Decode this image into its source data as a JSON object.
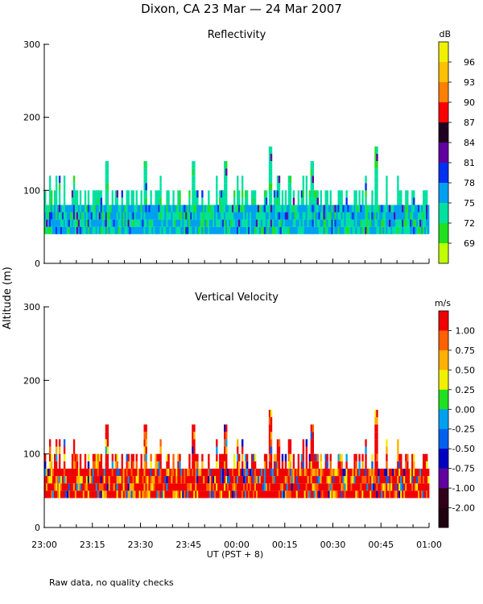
{
  "chart_data": {
    "title": "Dixon, CA 23 Mar — 24 Mar 2007",
    "ylabel": "Altitude (m)",
    "xlabel": "UT  (PST + 8)",
    "footnote": "Raw data, no quality checks",
    "x_ticks": [
      "23:00",
      "23:15",
      "23:30",
      "23:45",
      "00:00",
      "00:15",
      "00:30",
      "00:45",
      "01:00"
    ],
    "x_range_minutes": [
      0,
      120
    ],
    "panels": [
      {
        "type": "heatmap",
        "title": "Reflectivity",
        "y_ticks": [
          "300",
          "200",
          "100",
          "0"
        ],
        "y_tick_values": [
          300,
          200,
          100,
          0
        ],
        "ylim": [
          0,
          300
        ],
        "data_altitude_range_m": [
          40,
          80
        ],
        "max_echo_top_m": 160,
        "colorbar_unit": "dB",
        "colorbar_labels": [
          "96",
          "93",
          "90",
          "87",
          "84",
          "81",
          "78",
          "75",
          "72",
          "69"
        ],
        "colorbar_colors": [
          "#f0f000",
          "#ffc000",
          "#ff8000",
          "#ff0000",
          "#200020",
          "#6000a0",
          "#0030f0",
          "#00a0f0",
          "#00e0a0",
          "#20e020",
          "#c0ff00"
        ],
        "dominant_values_dB": [
          75,
          78,
          72
        ],
        "spike_times_min": [
          19,
          31,
          46,
          56,
          70,
          76,
          83,
          103
        ],
        "spike_tops_m": [
          140,
          140,
          140,
          140,
          160,
          120,
          140,
          160
        ]
      },
      {
        "type": "heatmap",
        "title": "Vertical Velocity",
        "y_ticks": [
          "300",
          "200",
          "100",
          "0"
        ],
        "y_tick_values": [
          300,
          200,
          100,
          0
        ],
        "ylim": [
          0,
          300
        ],
        "data_altitude_range_m": [
          40,
          80
        ],
        "max_echo_top_m": 160,
        "colorbar_unit": "m/s",
        "colorbar_labels": [
          "1.00",
          "0.75",
          "0.50",
          "0.25",
          "0.00",
          "-0.25",
          "-0.50",
          "-0.75",
          "-1.00",
          "-2.00"
        ],
        "colorbar_colors": [
          "#f00000",
          "#ff6000",
          "#ffb000",
          "#f0f000",
          "#20e020",
          "#00a0f0",
          "#0060f0",
          "#0000c0",
          "#6000a0",
          "#30001a",
          "#200010"
        ],
        "dominant_values_ms": [
          1.0,
          0.75,
          0.5
        ],
        "spike_times_min": [
          19,
          31,
          46,
          56,
          70,
          76,
          83,
          103
        ],
        "spike_tops_m": [
          140,
          140,
          140,
          140,
          160,
          120,
          140,
          160
        ]
      }
    ]
  }
}
